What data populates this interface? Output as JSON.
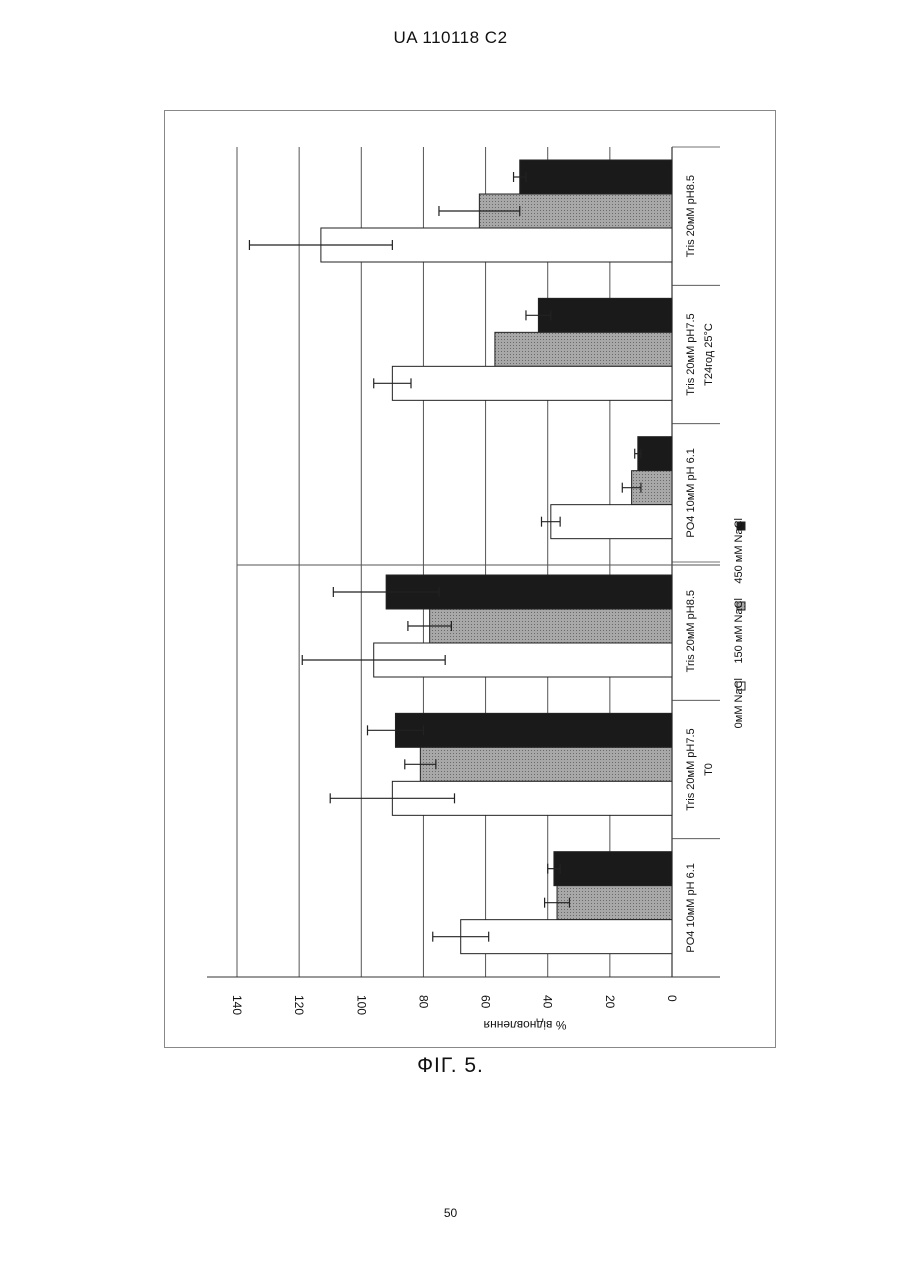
{
  "header": {
    "text": "UA   110118   C2"
  },
  "caption": {
    "text": "ФІГ. 5."
  },
  "page_number": "50",
  "chart_data": {
    "type": "bar",
    "orientation": "horizontal, rotated page",
    "ylabel": "% відновлення",
    "ylim": [
      0,
      140
    ],
    "yticks": [
      0,
      20,
      40,
      60,
      80,
      100,
      120,
      140
    ],
    "grid": true,
    "groups": [
      {
        "label": "T0",
        "categories": [
          "PO4 10мМ  pH 6.1",
          "Tris 20мМ  pH7.5",
          "Tris 20мМ  pH8.5"
        ]
      },
      {
        "label": "T24год 25°C",
        "categories": [
          "PO4 10мМ  pH 6.1",
          "Tris 20мМ  pH7.5",
          "Tris 20мМ  pH8.5"
        ]
      }
    ],
    "categories": [
      "PO4 10мМ  pH 6.1",
      "Tris 20мМ  pH7.5",
      "Tris 20мМ  pH8.5",
      "PO4 10мМ  pH 6.1",
      "Tris 20мМ  pH7.5",
      "Tris 20мМ  pH8.5"
    ],
    "series": [
      {
        "name": "0мМ NaCl",
        "color": "#ffffff",
        "values": [
          68,
          90,
          96,
          39,
          90,
          113
        ],
        "errors": [
          9,
          20,
          23,
          3,
          6,
          23
        ]
      },
      {
        "name": "150 мМ NaCl",
        "color": "#9a9a9a",
        "values": [
          37,
          81,
          78,
          13,
          57,
          62
        ],
        "errors": [
          4,
          5,
          7,
          3,
          0,
          13
        ]
      },
      {
        "name": "450 мМ NaCl",
        "color": "#1a1a1a",
        "values": [
          38,
          89,
          92,
          11,
          43,
          49
        ],
        "errors": [
          2,
          9,
          17,
          1,
          4,
          2
        ]
      }
    ],
    "legend_position": "bottom"
  }
}
